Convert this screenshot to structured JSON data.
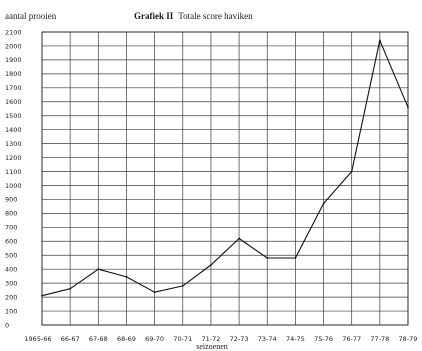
{
  "chart_data": {
    "type": "line",
    "title_prefix": "Grafiek II",
    "title": "Totale score haviken",
    "ylabel": "aantal prooien",
    "xlabel": "seizoenen",
    "ylim": [
      0,
      2100
    ],
    "ytick_step": 100,
    "grid": true,
    "categories": [
      "1965-66",
      "66-67",
      "67-68",
      "68-69",
      "69-70",
      "70-71",
      "71-72",
      "72-73",
      "73-74",
      "74-75",
      "75-76",
      "76-77",
      "77-78",
      "78-79"
    ],
    "series": [
      {
        "values": [
          210,
          260,
          400,
          345,
          235,
          280,
          430,
          620,
          480,
          480,
          870,
          1100,
          2040,
          1560
        ]
      }
    ],
    "line_color": "#111111"
  }
}
